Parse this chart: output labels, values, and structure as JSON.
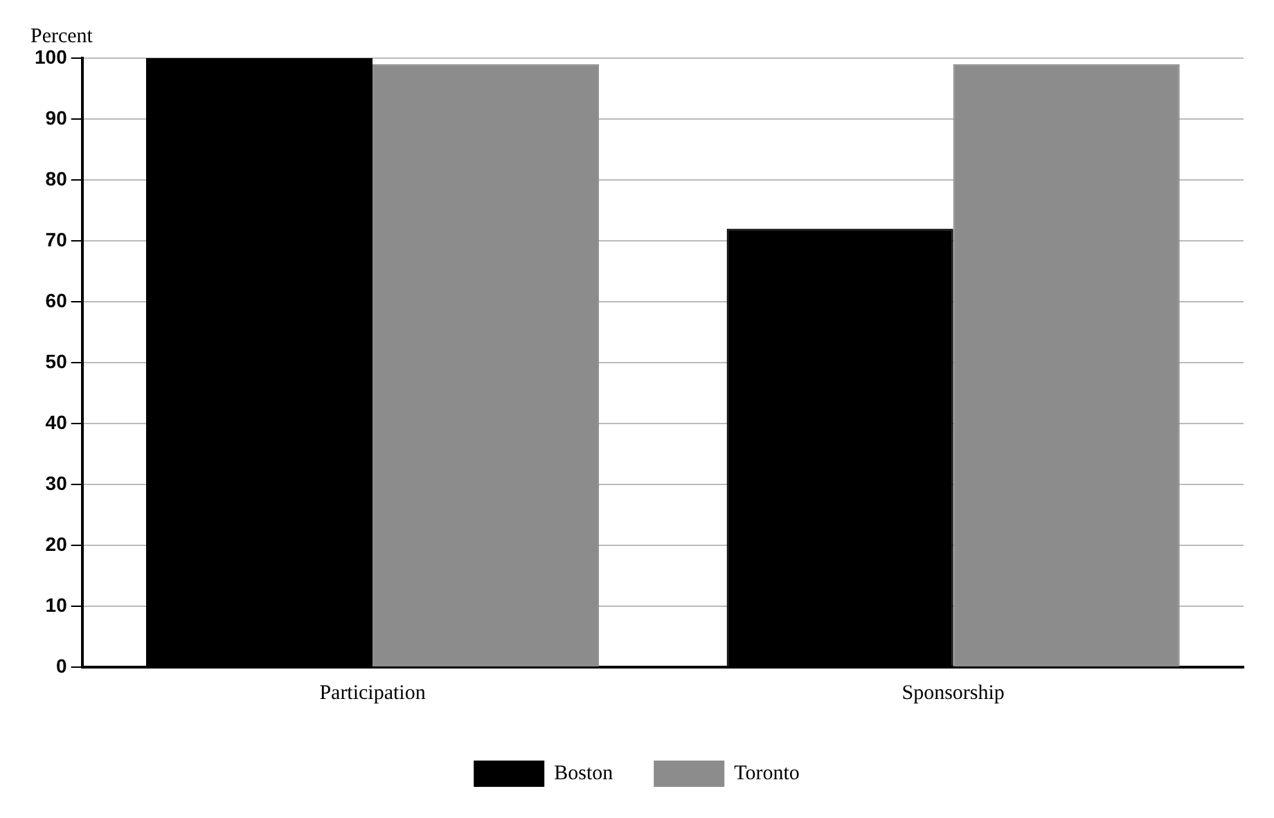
{
  "chart_data": {
    "type": "bar",
    "ylabel": "Percent",
    "categories": [
      "Participation",
      "Sponsorship"
    ],
    "series": [
      {
        "name": "Boston",
        "color": "#000000",
        "values": [
          100,
          72
        ]
      },
      {
        "name": "Toronto",
        "color": "#8c8c8c",
        "values": [
          99,
          99
        ]
      }
    ],
    "ylim": [
      0,
      100
    ],
    "yticks": [
      0,
      10,
      20,
      30,
      40,
      50,
      60,
      70,
      80,
      90,
      100
    ],
    "grid": "y",
    "legend": "bottom"
  }
}
